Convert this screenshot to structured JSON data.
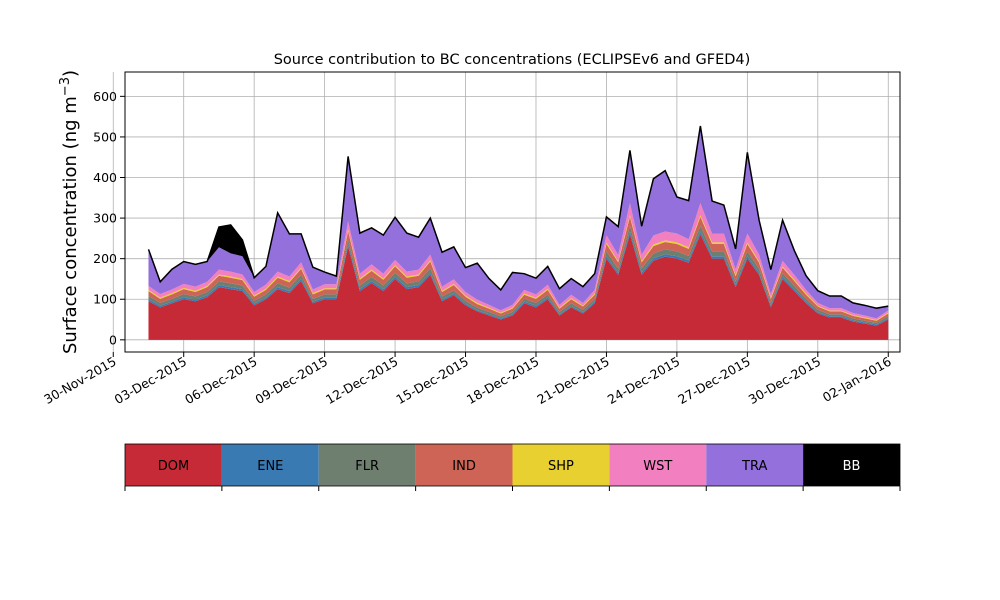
{
  "chart_data": {
    "type": "area",
    "stacked": true,
    "title": "Source contribution to BC concentrations (ECLIPSEv6 and GFED4)",
    "ylabel_main": "Surface concentration (ng m",
    "ylabel_sup": "−3",
    "ylabel_close": ")",
    "xlabel": "",
    "grid": true,
    "legend_position": "bottom",
    "ylim": [
      -30,
      660
    ],
    "yticks": [
      0,
      100,
      200,
      300,
      400,
      500,
      600
    ],
    "xlim": [
      "2015-11-30T12:00",
      "2016-01-02T12:00"
    ],
    "xticks": [
      {
        "date": "2015-11-30",
        "label": "30-Nov-2015"
      },
      {
        "date": "2015-12-03",
        "label": "03-Dec-2015"
      },
      {
        "date": "2015-12-06",
        "label": "06-Dec-2015"
      },
      {
        "date": "2015-12-09",
        "label": "09-Dec-2015"
      },
      {
        "date": "2015-12-12",
        "label": "12-Dec-2015"
      },
      {
        "date": "2015-12-15",
        "label": "15-Dec-2015"
      },
      {
        "date": "2015-12-18",
        "label": "18-Dec-2015"
      },
      {
        "date": "2015-12-21",
        "label": "21-Dec-2015"
      },
      {
        "date": "2015-12-24",
        "label": "24-Dec-2015"
      },
      {
        "date": "2015-12-27",
        "label": "27-Dec-2015"
      },
      {
        "date": "2015-12-30",
        "label": "30-Dec-2015"
      },
      {
        "date": "2016-01-02",
        "label": "02-Jan-2016"
      }
    ],
    "x": [
      "2015-12-01T12:00",
      "2015-12-02T00:00",
      "2015-12-02T12:00",
      "2015-12-03T00:00",
      "2015-12-03T12:00",
      "2015-12-04T00:00",
      "2015-12-04T12:00",
      "2015-12-05T00:00",
      "2015-12-05T12:00",
      "2015-12-06T00:00",
      "2015-12-06T12:00",
      "2015-12-07T00:00",
      "2015-12-07T12:00",
      "2015-12-08T00:00",
      "2015-12-08T12:00",
      "2015-12-09T00:00",
      "2015-12-09T12:00",
      "2015-12-10T00:00",
      "2015-12-10T12:00",
      "2015-12-11T00:00",
      "2015-12-11T12:00",
      "2015-12-12T00:00",
      "2015-12-12T12:00",
      "2015-12-13T00:00",
      "2015-12-13T12:00",
      "2015-12-14T00:00",
      "2015-12-14T12:00",
      "2015-12-15T00:00",
      "2015-12-15T12:00",
      "2015-12-16T00:00",
      "2015-12-16T12:00",
      "2015-12-17T00:00",
      "2015-12-17T12:00",
      "2015-12-18T00:00",
      "2015-12-18T12:00",
      "2015-12-19T00:00",
      "2015-12-19T12:00",
      "2015-12-20T00:00",
      "2015-12-20T12:00",
      "2015-12-21T00:00",
      "2015-12-21T12:00",
      "2015-12-22T00:00",
      "2015-12-22T12:00",
      "2015-12-23T00:00",
      "2015-12-23T12:00",
      "2015-12-24T00:00",
      "2015-12-24T12:00",
      "2015-12-25T00:00",
      "2015-12-25T12:00",
      "2015-12-26T00:00",
      "2015-12-26T12:00",
      "2015-12-27T00:00",
      "2015-12-27T12:00",
      "2015-12-28T00:00",
      "2015-12-28T12:00",
      "2015-12-29T00:00",
      "2015-12-29T12:00",
      "2015-12-30T00:00",
      "2015-12-30T12:00",
      "2015-12-31T00:00",
      "2015-12-31T12:00",
      "2016-01-01T00:00",
      "2016-01-01T12:00",
      "2016-01-02T00:00"
    ],
    "series": [
      {
        "name": "DOM",
        "color": "#c62a36",
        "values": [
          95,
          80,
          90,
          100,
          95,
          105,
          130,
          125,
          120,
          85,
          100,
          125,
          115,
          145,
          90,
          100,
          100,
          230,
          120,
          140,
          120,
          150,
          125,
          130,
          160,
          95,
          110,
          85,
          70,
          60,
          50,
          60,
          90,
          80,
          100,
          60,
          80,
          65,
          90,
          200,
          160,
          260,
          160,
          195,
          205,
          200,
          190,
          260,
          200,
          200,
          130,
          200,
          160,
          80,
          150,
          120,
          90,
          65,
          55,
          55,
          45,
          40,
          35,
          50
        ]
      },
      {
        "name": "ENE",
        "color": "#3a7ab3",
        "values": [
          5,
          4,
          4,
          5,
          4,
          5,
          5,
          5,
          5,
          4,
          4,
          5,
          5,
          5,
          4,
          4,
          4,
          6,
          5,
          5,
          5,
          5,
          5,
          5,
          5,
          4,
          4,
          4,
          3,
          3,
          3,
          3,
          4,
          4,
          4,
          3,
          3,
          3,
          4,
          6,
          5,
          7,
          6,
          6,
          6,
          6,
          6,
          7,
          6,
          6,
          5,
          6,
          5,
          4,
          5,
          5,
          4,
          3,
          3,
          3,
          3,
          3,
          3,
          3
        ]
      },
      {
        "name": "FLR",
        "color": "#6f7f6f",
        "values": [
          8,
          7,
          7,
          8,
          8,
          8,
          9,
          9,
          9,
          7,
          8,
          9,
          9,
          10,
          7,
          8,
          8,
          12,
          9,
          10,
          9,
          10,
          9,
          9,
          11,
          8,
          8,
          7,
          6,
          6,
          5,
          6,
          7,
          7,
          8,
          6,
          7,
          6,
          7,
          12,
          10,
          14,
          10,
          12,
          12,
          12,
          11,
          14,
          12,
          12,
          9,
          12,
          10,
          7,
          9,
          8,
          7,
          6,
          5,
          5,
          5,
          4,
          4,
          5
        ]
      },
      {
        "name": "IND",
        "color": "#cd6455",
        "values": [
          12,
          10,
          11,
          12,
          11,
          12,
          14,
          14,
          13,
          10,
          11,
          14,
          13,
          15,
          11,
          12,
          12,
          20,
          14,
          15,
          14,
          16,
          14,
          14,
          17,
          11,
          13,
          10,
          9,
          8,
          7,
          8,
          10,
          10,
          11,
          8,
          10,
          8,
          10,
          18,
          16,
          22,
          15,
          18,
          18,
          18,
          17,
          22,
          18,
          18,
          13,
          18,
          15,
          10,
          14,
          12,
          10,
          8,
          7,
          7,
          6,
          6,
          5,
          7
        ]
      },
      {
        "name": "SHP",
        "color": "#e8d030",
        "values": [
          3,
          3,
          3,
          3,
          3,
          3,
          3,
          3,
          3,
          3,
          3,
          3,
          3,
          3,
          3,
          3,
          3,
          4,
          3,
          3,
          3,
          3,
          3,
          3,
          3,
          3,
          3,
          3,
          3,
          2,
          2,
          2,
          3,
          3,
          3,
          2,
          3,
          2,
          3,
          4,
          3,
          4,
          3,
          4,
          4,
          4,
          4,
          4,
          4,
          4,
          3,
          4,
          3,
          3,
          3,
          3,
          3,
          2,
          2,
          2,
          2,
          2,
          2,
          2
        ]
      },
      {
        "name": "WST",
        "color": "#f27fbf",
        "values": [
          10,
          9,
          9,
          10,
          10,
          10,
          12,
          12,
          11,
          9,
          10,
          12,
          11,
          13,
          9,
          10,
          10,
          20,
          12,
          13,
          12,
          13,
          12,
          12,
          14,
          10,
          11,
          9,
          8,
          7,
          6,
          7,
          9,
          8,
          10,
          7,
          8,
          7,
          9,
          18,
          15,
          30,
          16,
          22,
          22,
          22,
          20,
          30,
          22,
          22,
          14,
          22,
          17,
          9,
          14,
          12,
          9,
          7,
          6,
          6,
          5,
          5,
          4,
          6
        ]
      },
      {
        "name": "TRA",
        "color": "#9370db",
        "values": [
          90,
          30,
          50,
          55,
          55,
          50,
          55,
          45,
          45,
          35,
          45,
          145,
          105,
          70,
          55,
          30,
          20,
          160,
          100,
          90,
          95,
          105,
          95,
          80,
          90,
          85,
          80,
          60,
          90,
          65,
          50,
          80,
          40,
          40,
          45,
          40,
          40,
          40,
          40,
          45,
          70,
          130,
          70,
          140,
          150,
          90,
          95,
          190,
          80,
          70,
          50,
          200,
          85,
          60,
          100,
          60,
          35,
          30,
          30,
          30,
          25,
          25,
          25,
          10
        ]
      },
      {
        "name": "BB",
        "color": "#000000",
        "values": [
          0,
          0,
          0,
          0,
          0,
          0,
          50,
          70,
          40,
          0,
          0,
          0,
          0,
          0,
          0,
          0,
          0,
          0,
          0,
          0,
          0,
          0,
          0,
          0,
          0,
          0,
          0,
          0,
          0,
          0,
          0,
          0,
          0,
          0,
          0,
          0,
          0,
          0,
          0,
          0,
          0,
          0,
          0,
          0,
          0,
          0,
          0,
          0,
          0,
          0,
          0,
          0,
          0,
          0,
          0,
          0,
          0,
          0,
          0,
          0,
          0,
          0,
          0,
          0
        ]
      }
    ]
  }
}
